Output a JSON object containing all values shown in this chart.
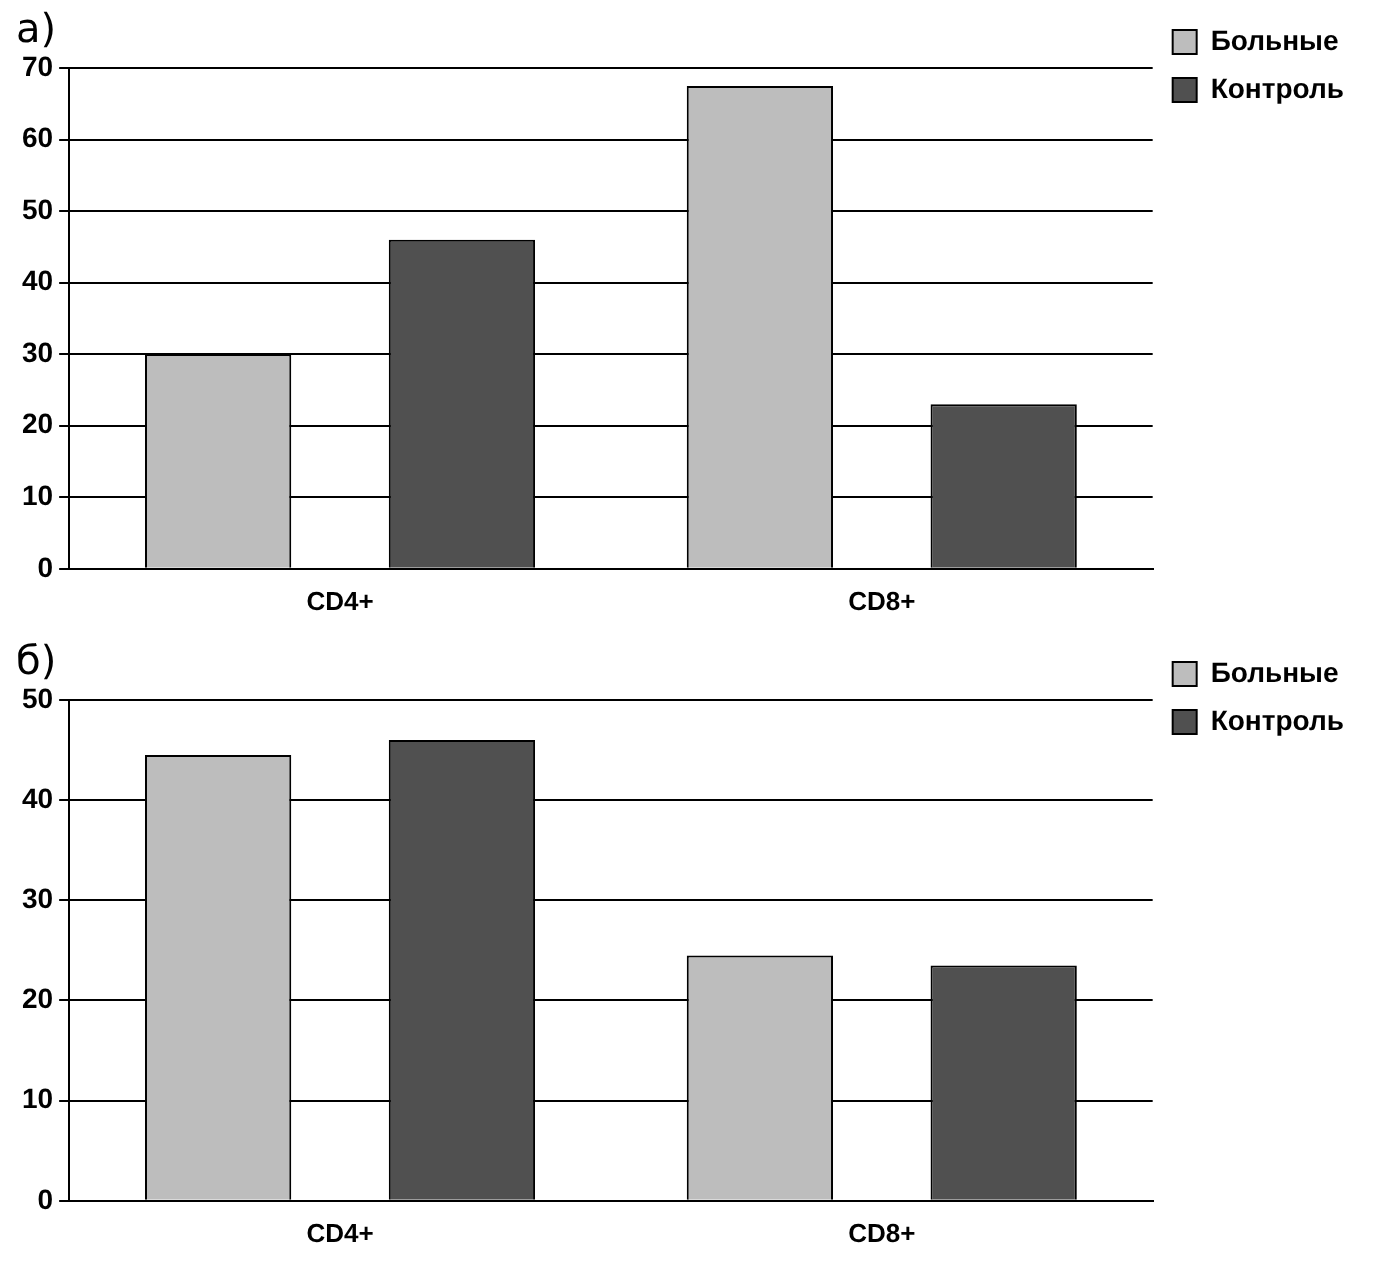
{
  "chart_data": [
    {
      "type": "bar",
      "title": "а)",
      "categories": [
        "CD4+",
        "CD8+"
      ],
      "series": [
        {
          "name": "Больные",
          "color": "#bdbdbd",
          "values": [
            30,
            67.5
          ]
        },
        {
          "name": "Контроль",
          "color": "#505050",
          "values": [
            46,
            23
          ]
        }
      ],
      "ylim": [
        0,
        70
      ],
      "yticks": [
        0,
        10,
        20,
        30,
        40,
        50,
        60,
        70
      ],
      "grid": "y",
      "legend": "right"
    },
    {
      "type": "bar",
      "title": "б)",
      "categories": [
        "CD4+",
        "CD8+"
      ],
      "series": [
        {
          "name": "Больные",
          "color": "#bdbdbd",
          "values": [
            44.5,
            24.5
          ]
        },
        {
          "name": "Контроль",
          "color": "#505050",
          "values": [
            46,
            23.5
          ]
        }
      ],
      "ylim": [
        0,
        50
      ],
      "yticks": [
        0,
        10,
        20,
        30,
        40,
        50
      ],
      "grid": "y",
      "legend": "right"
    }
  ]
}
